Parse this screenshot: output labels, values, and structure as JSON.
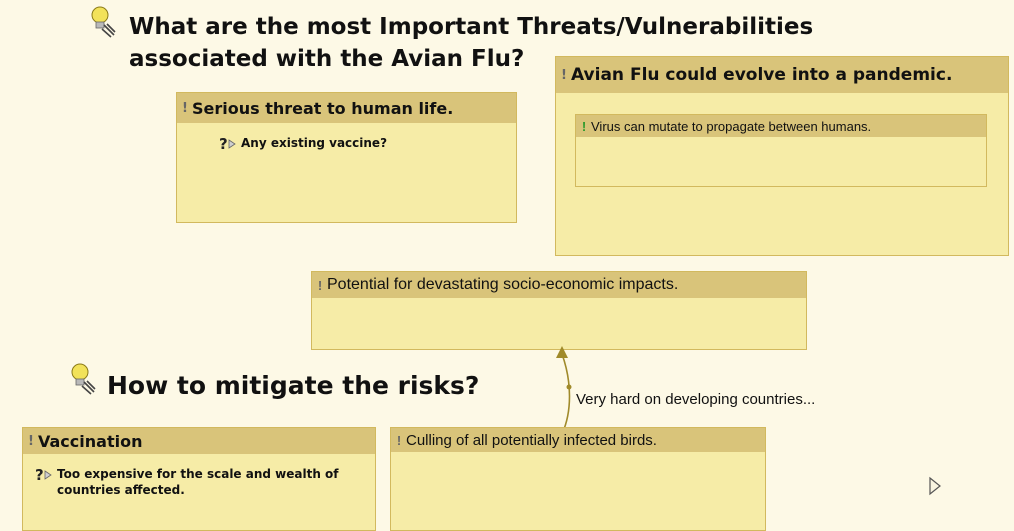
{
  "headings": {
    "threats_line1": "What are the most Important Threats/Vulnerabilities",
    "threats_line2": "associated with the Avian Flu?",
    "mitigate": "How to mitigate the risks?"
  },
  "nodes": {
    "serious_threat": {
      "title": "Serious threat to human life.",
      "question": "Any existing vaccine?"
    },
    "pandemic": {
      "title": "Avian Flu could evolve into a pandemic.",
      "sub": "Virus can mutate to propagate between humans."
    },
    "socio_economic": {
      "title": "Potential for devastating socio-economic impacts."
    },
    "vaccination": {
      "title": "Vaccination",
      "question": "Too expensive for the scale and wealth of countries affected."
    },
    "culling": {
      "title": "Culling of all potentially infected birds."
    }
  },
  "link": {
    "label": "Very hard on developing countries..."
  },
  "colors": {
    "background": "#fdf9e6",
    "node_fill": "#f6eca7",
    "node_header": "#d9c47a",
    "node_border": "#d2b95e",
    "arrow": "#a08a2a"
  },
  "icons": {
    "idea": "lightbulb-icon",
    "question": "question-icon",
    "note": "exclamation-icon",
    "collapse": "triangle-right-icon"
  }
}
